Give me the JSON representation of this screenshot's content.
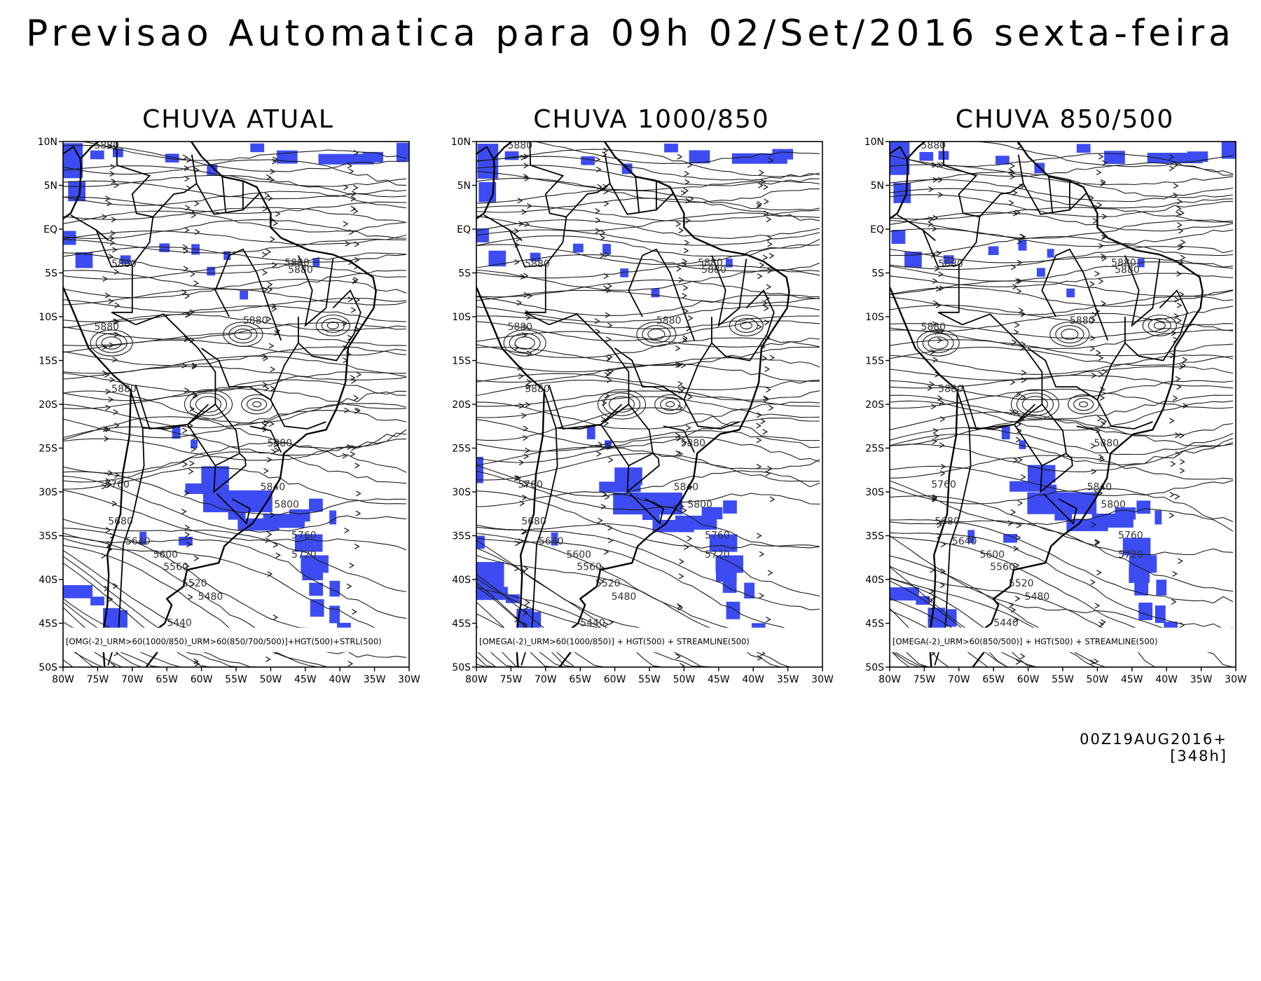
{
  "title": "Previsao Automatica para 09h 02/Set/2016 sexta-feira",
  "run_stamp": "00Z19AUG2016+[348h]",
  "colors": {
    "rain": "#3c4cf2",
    "contour": "#333333",
    "stream": "#1a1a1a",
    "coast": "#000000"
  },
  "lat_labels": [
    "10N",
    "5N",
    "EQ",
    "5S",
    "10S",
    "15S",
    "20S",
    "25S",
    "30S",
    "35S",
    "40S",
    "45S",
    "50S"
  ],
  "lon_labels": [
    "80W",
    "75W",
    "70W",
    "65W",
    "60W",
    "55W",
    "50W",
    "45W",
    "40W",
    "35W",
    "30W"
  ],
  "panels": [
    {
      "title": "CHUVA ATUAL",
      "caption": "[OMG(-2)_URM>60(1000/850)_URM>60(850/700/500)]+HGT(500)+STRL(500)",
      "contours": [
        "5880",
        "5880",
        "5880",
        "5880",
        "5880",
        "5880",
        "5880",
        "5880",
        "5760",
        "5840",
        "5800",
        "5680",
        "5640",
        "5600",
        "5560",
        "5520",
        "5480",
        "5440",
        "5760",
        "5720"
      ]
    },
    {
      "title": "CHUVA 1000/850",
      "caption": "[OMEGA(-2)_URM>60(1000/850)] + HGT(500) + STREAMLINE(500)",
      "contours": [
        "5880",
        "5880",
        "5880",
        "5880",
        "5880",
        "5880",
        "5880",
        "5880",
        "5760",
        "5840",
        "5800",
        "5680",
        "5640",
        "5600",
        "5560",
        "5520",
        "5480",
        "5440",
        "5760",
        "5720"
      ]
    },
    {
      "title": "CHUVA 850/500",
      "caption": "[OMEGA(-2)_URM>60(850/500)] + HGT(500) + STREAMLINE(500)",
      "contours": [
        "5880",
        "5880",
        "5880",
        "5880",
        "5880",
        "5880",
        "5880",
        "5880",
        "5760",
        "5840",
        "5800",
        "5680",
        "5640",
        "5600",
        "5560",
        "5520",
        "5480",
        "5440",
        "5760",
        "5720"
      ]
    }
  ]
}
